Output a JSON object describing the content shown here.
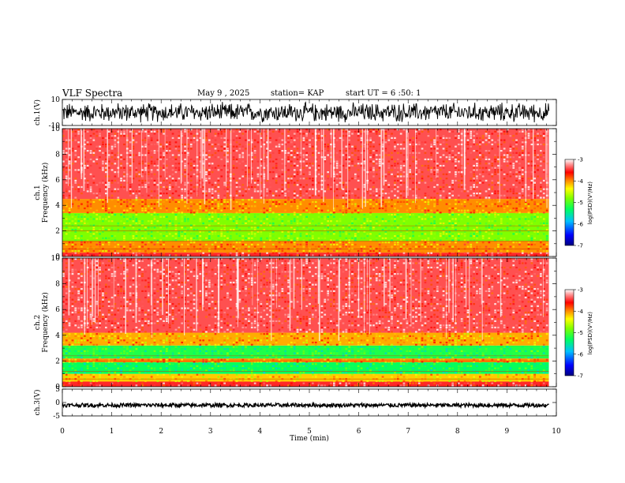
{
  "header": {
    "title": "VLF Spectra",
    "date": "May 9 , 2025",
    "station": "station= KAP",
    "start": "start UT = 6 :50: 1"
  },
  "colors": {
    "background": "#ffffff",
    "trace": "#000000",
    "colormap": [
      "#000080",
      "#0000ff",
      "#00c0ff",
      "#00ff60",
      "#80ff00",
      "#ffff00",
      "#ff8000",
      "#ff0000",
      "#ff8080",
      "#ffffff"
    ]
  },
  "chart_data": [
    {
      "type": "line",
      "panel": "ch1-waveform",
      "ylabel": "ch.1(V)",
      "ylim": [
        -10,
        10
      ],
      "yticks": [
        "10",
        "-10"
      ],
      "x_range_min": [
        0,
        9.85
      ],
      "description_values": "dense noise waveform spanning approximately -8 to +8 V"
    },
    {
      "type": "heatmap",
      "panel": "ch1-spectrogram",
      "ylabel": "ch.1 Frequency (kHz)",
      "ylim": [
        0,
        10
      ],
      "yticks": [
        "0",
        "2",
        "4",
        "6",
        "8",
        "10"
      ],
      "x_range_min": [
        0,
        9.85
      ],
      "colorbar": {
        "label": "log(PSD)(V²/Hz)",
        "range": [
          -7,
          -3
        ],
        "ticks": [
          "-3",
          "-4",
          "-5",
          "-6",
          "-7"
        ]
      },
      "bands": [
        {
          "freq_khz": [
            0,
            0.3
          ],
          "log_psd": -3.5
        },
        {
          "freq_khz": [
            0.3,
            1.2
          ],
          "log_psd": -4.0
        },
        {
          "freq_khz": [
            1.2,
            3.4
          ],
          "log_psd": -4.8
        },
        {
          "freq_khz": [
            3.4,
            4.5
          ],
          "log_psd": -4.0
        },
        {
          "freq_khz": [
            4.5,
            10
          ],
          "log_psd": -3.4
        }
      ]
    },
    {
      "type": "heatmap",
      "panel": "ch2-spectrogram",
      "ylabel": "ch.2 Frequency (kHz)",
      "ylim": [
        0,
        10
      ],
      "yticks": [
        "0",
        "2",
        "4",
        "6",
        "8",
        "10"
      ],
      "x_range_min": [
        0,
        9.85
      ],
      "colorbar": {
        "label": "log(PSD)(V²/Hz)",
        "range": [
          -7,
          -3
        ],
        "ticks": [
          "-3",
          "-4",
          "-5",
          "-6",
          "-7"
        ]
      },
      "bands": [
        {
          "freq_khz": [
            0,
            0.4
          ],
          "log_psd": -3.5
        },
        {
          "freq_khz": [
            0.4,
            1.0
          ],
          "log_psd": -4.2
        },
        {
          "freq_khz": [
            1.0,
            1.9
          ],
          "log_psd": -5.3
        },
        {
          "freq_khz": [
            1.9,
            2.2
          ],
          "log_psd": -4.0
        },
        {
          "freq_khz": [
            2.2,
            3.2
          ],
          "log_psd": -5.2
        },
        {
          "freq_khz": [
            3.2,
            4.2
          ],
          "log_psd": -4.1
        },
        {
          "freq_khz": [
            4.2,
            10
          ],
          "log_psd": -3.4
        }
      ]
    },
    {
      "type": "line",
      "panel": "ch3-waveform",
      "ylabel": "ch.3(V)",
      "ylim": [
        -5,
        5
      ],
      "yticks": [
        "5",
        "0",
        "-5"
      ],
      "x_range_min": [
        0,
        9.85
      ],
      "description_values": "narrow band signal centered near -1 V"
    }
  ],
  "x_axis": {
    "label": "Time (min)",
    "range": [
      0,
      10
    ],
    "ticks": [
      "0",
      "1",
      "2",
      "3",
      "4",
      "5",
      "6",
      "7",
      "8",
      "9",
      "10"
    ]
  }
}
